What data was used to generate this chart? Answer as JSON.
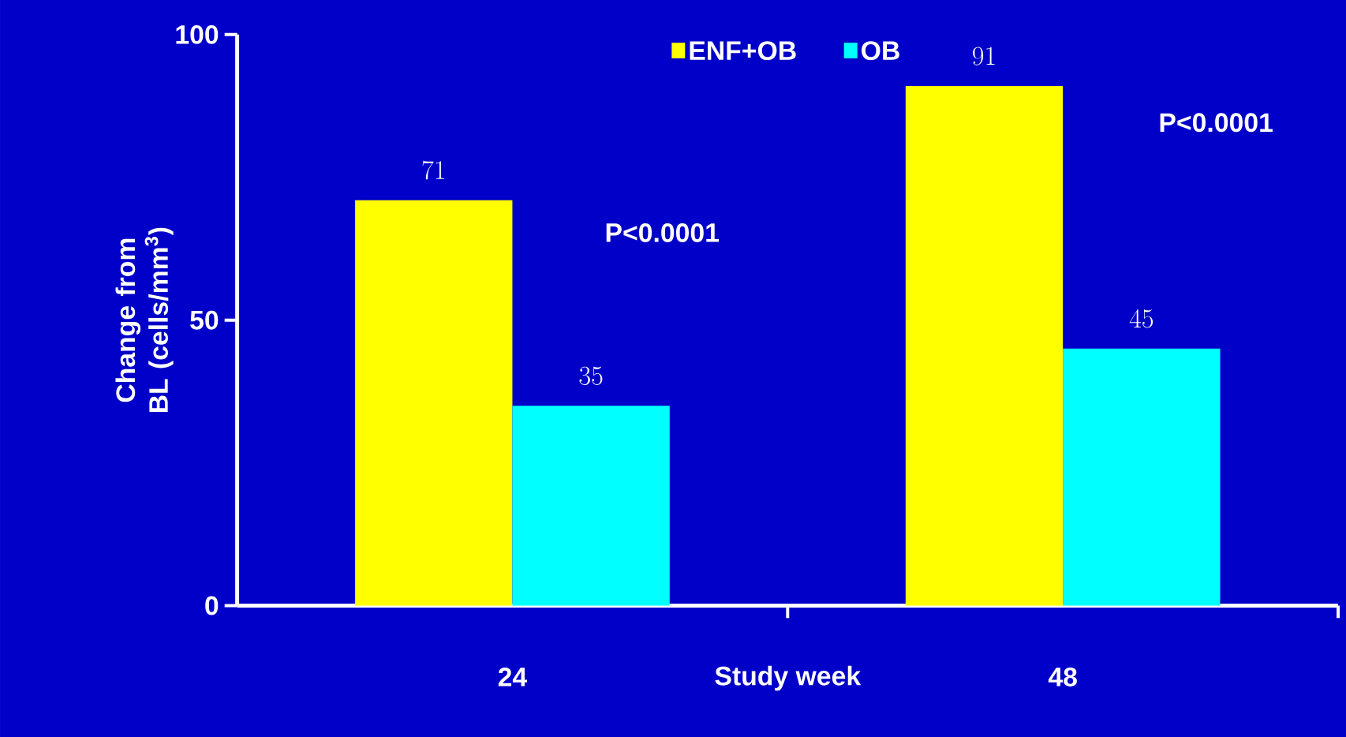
{
  "chart_data": {
    "type": "bar",
    "xlabel": "Study week",
    "ylabel": "Change from BL (cells/mm$^{3}$)",
    "categories": [
      "24",
      "48"
    ],
    "series": [
      {
        "name": "ENF+OB",
        "color": "#ffff00",
        "values": [
          71,
          91
        ]
      },
      {
        "name": "OB",
        "color": "#00ffff",
        "values": [
          35,
          45
        ]
      }
    ],
    "ylim": [
      0,
      100
    ],
    "yticks": [
      0,
      50,
      100
    ],
    "data_labels": true,
    "legend": "top",
    "annotations": [
      "P<0.0001",
      "P<0.0001"
    ]
  }
}
